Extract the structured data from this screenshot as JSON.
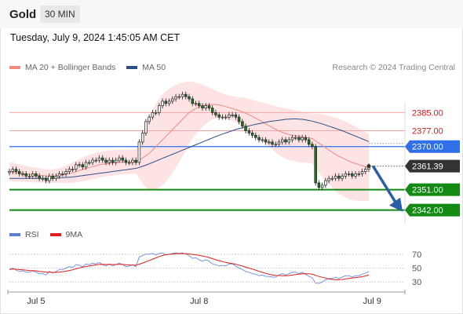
{
  "header": {
    "title": "Gold",
    "timeframe": "30 MIN"
  },
  "datetime": "Tuesday, July 9, 2024 1:45:05 AM CET",
  "legend": {
    "items": [
      {
        "label": "MA 20 + Bollinger Bands",
        "color": "#f28b82"
      },
      {
        "label": "MA 50",
        "color": "#2c4f8a"
      }
    ],
    "credit": "Research © 2024 Trading Central"
  },
  "rsi_legend": {
    "items": [
      {
        "label": "RSI",
        "color": "#5b7fd6"
      },
      {
        "label": "9MA",
        "color": "#e01e1e"
      }
    ]
  },
  "colors": {
    "resistance": "#f4a6a6",
    "resistance_label": "#d02020",
    "pivot": "#2f6fe8",
    "support": "#138a13",
    "current": "#333333",
    "up_candle": "#ffffff",
    "down_candle": "#1a7a1a",
    "band": "#fde0e0",
    "arrow": "#2a5ea8"
  },
  "chart_data": [
    {
      "type": "candlestick",
      "x_ticks": [
        {
          "label": "Jul 5",
          "index": 8
        },
        {
          "label": "Jul 8",
          "index": 57
        },
        {
          "label": "Jul 9",
          "index": 109
        }
      ],
      "ylim": [
        2336,
        2400
      ],
      "levels": [
        {
          "value": 2385.0,
          "label": "2385.00",
          "kind": "resistance"
        },
        {
          "value": 2377.0,
          "label": "2377.00",
          "kind": "resistance"
        },
        {
          "value": 2370.0,
          "label": "2370.00",
          "kind": "pivot"
        },
        {
          "value": 2361.39,
          "label": "2361.39",
          "kind": "current"
        },
        {
          "value": 2351.0,
          "label": "2351.00",
          "kind": "support"
        },
        {
          "value": 2342.0,
          "label": "2342.00",
          "kind": "support"
        }
      ],
      "forecast_target": 2342.0,
      "closes": [
        2359,
        2360,
        2359,
        2358,
        2358,
        2357,
        2357,
        2358,
        2357,
        2356,
        2356,
        2355,
        2357,
        2356,
        2357,
        2358,
        2358,
        2359,
        2360,
        2360,
        2362,
        2362,
        2361,
        2363,
        2363,
        2364,
        2364,
        2365,
        2364,
        2363,
        2364,
        2363,
        2364,
        2365,
        2364,
        2363,
        2363,
        2364,
        2363,
        2372,
        2376,
        2381,
        2383,
        2385,
        2385,
        2388,
        2390,
        2389,
        2390,
        2391,
        2392,
        2392,
        2393,
        2392,
        2391,
        2389,
        2389,
        2388,
        2387,
        2388,
        2387,
        2385,
        2384,
        2383,
        2383,
        2383,
        2384,
        2384,
        2383,
        2381,
        2379,
        2377,
        2376,
        2375,
        2374,
        2373,
        2373,
        2372,
        2372,
        2371,
        2371,
        2372,
        2373,
        2372,
        2373,
        2374,
        2374,
        2373,
        2374,
        2373,
        2371,
        2370,
        2354,
        2352,
        2353,
        2355,
        2356,
        2356,
        2357,
        2356,
        2357,
        2358,
        2358,
        2357,
        2358,
        2358,
        2359,
        2360,
        2361.39
      ],
      "ma20": [
        2359,
        2358.8,
        2358.5,
        2358.3,
        2358.2,
        2358,
        2357.8,
        2357.6,
        2357.5,
        2357.3,
        2357.2,
        2357,
        2357,
        2357,
        2357.1,
        2357.3,
        2357.5,
        2357.8,
        2358.1,
        2358.5,
        2359,
        2359.5,
        2360,
        2360.4,
        2360.8,
        2361.2,
        2361.6,
        2362,
        2362.2,
        2362.4,
        2362.6,
        2362.8,
        2363,
        2363.1,
        2363.2,
        2363.3,
        2363.3,
        2363.4,
        2363.4,
        2364,
        2365,
        2366,
        2367,
        2368.5,
        2370,
        2371.5,
        2373,
        2374.5,
        2376,
        2377.5,
        2379,
        2380.5,
        2382,
        2383.5,
        2385,
        2386,
        2386.8,
        2387.5,
        2388,
        2388.3,
        2388.5,
        2388.6,
        2388.5,
        2388.3,
        2388,
        2387.6,
        2387.2,
        2386.8,
        2386.3,
        2385.8,
        2385.3,
        2384.7,
        2384,
        2383.3,
        2382.5,
        2381.7,
        2380.8,
        2380,
        2379.2,
        2378.4,
        2377.6,
        2376.9,
        2376.3,
        2375.8,
        2375.3,
        2375,
        2374.7,
        2374.4,
        2374.2,
        2374,
        2373.8,
        2373.5,
        2372.5,
        2371.5,
        2370.5,
        2369.5,
        2368.5,
        2367.5,
        2366.5,
        2365.7,
        2365,
        2364.3,
        2363.6,
        2363,
        2362.5,
        2362,
        2361.6,
        2361.2,
        2360.8
      ],
      "ma50": [
        2356,
        2356,
        2356,
        2356,
        2356,
        2356,
        2356,
        2356,
        2356,
        2356,
        2356,
        2356,
        2356,
        2356,
        2356.1,
        2356.2,
        2356.3,
        2356.4,
        2356.5,
        2356.6,
        2356.8,
        2357,
        2357.2,
        2357.4,
        2357.6,
        2357.8,
        2358,
        2358.2,
        2358.4,
        2358.6,
        2358.8,
        2359,
        2359.2,
        2359.4,
        2359.6,
        2359.8,
        2360,
        2360.2,
        2360.4,
        2360.8,
        2361.3,
        2361.8,
        2362.4,
        2363,
        2363.6,
        2364.2,
        2364.8,
        2365.4,
        2366,
        2366.6,
        2367.2,
        2367.8,
        2368.4,
        2369,
        2369.6,
        2370.2,
        2370.8,
        2371.4,
        2372,
        2372.6,
        2373.2,
        2373.8,
        2374.4,
        2375,
        2375.5,
        2376,
        2376.5,
        2377,
        2377.5,
        2377.9,
        2378.3,
        2378.7,
        2379.1,
        2379.5,
        2379.8,
        2380.1,
        2380.4,
        2380.7,
        2381,
        2381.2,
        2381.4,
        2381.6,
        2381.8,
        2382,
        2382.1,
        2382.2,
        2382.2,
        2382.1,
        2382,
        2381.8,
        2381.5,
        2381.2,
        2380.8,
        2380.4,
        2380,
        2379.5,
        2379,
        2378.5,
        2378,
        2377.5,
        2377,
        2376.4,
        2375.8,
        2375.2,
        2374.6,
        2374,
        2373.4,
        2372.8,
        2372.2
      ],
      "bb_upper": [
        2363,
        2363,
        2362.5,
        2362,
        2361.8,
        2361.5,
        2361.2,
        2361,
        2360.8,
        2360.5,
        2360.3,
        2360,
        2360,
        2360,
        2360.2,
        2360.5,
        2361,
        2361.6,
        2362.3,
        2363,
        2363.8,
        2364.5,
        2365.2,
        2365.8,
        2366.3,
        2366.8,
        2367.2,
        2367.6,
        2367.8,
        2368,
        2368.2,
        2368.4,
        2368.5,
        2368.6,
        2368.7,
        2368.7,
        2368.7,
        2368.8,
        2368.8,
        2372,
        2376,
        2380,
        2383,
        2386,
        2389,
        2391,
        2393,
        2394.5,
        2395.5,
        2396.5,
        2397.2,
        2397.8,
        2398.2,
        2398.5,
        2398.6,
        2398.5,
        2398.2,
        2397.8,
        2397.3,
        2396.7,
        2396,
        2395.3,
        2394.6,
        2394,
        2393.5,
        2393,
        2392.6,
        2392.3,
        2392,
        2391.8,
        2391.6,
        2391.3,
        2391,
        2390.6,
        2390.2,
        2389.8,
        2389.4,
        2389,
        2388.6,
        2388.2,
        2387.8,
        2387.5,
        2387.2,
        2386.9,
        2386.6,
        2386.3,
        2386,
        2385.7,
        2385.4,
        2385.1,
        2384.8,
        2384.5,
        2384.5,
        2384.5,
        2384.3,
        2384,
        2383.6,
        2383.2,
        2382.7,
        2382.2,
        2381.6,
        2381,
        2380.3,
        2379.6,
        2378.8,
        2378,
        2377.2,
        2376.4,
        2375.6
      ],
      "bb_lower": [
        2355,
        2354.6,
        2354.5,
        2354.6,
        2354.6,
        2354.5,
        2354.4,
        2354.2,
        2354.2,
        2354.1,
        2354.1,
        2354,
        2354,
        2354,
        2354,
        2354.1,
        2354,
        2354,
        2353.9,
        2354,
        2354.2,
        2354.5,
        2354.8,
        2355,
        2355.3,
        2355.6,
        2356,
        2356.4,
        2356.6,
        2356.8,
        2357,
        2357.2,
        2357.5,
        2357.6,
        2357.7,
        2357.9,
        2357.9,
        2358,
        2358,
        2356,
        2354,
        2352,
        2351,
        2351,
        2351,
        2352,
        2353,
        2354.5,
        2356.5,
        2358.5,
        2360.8,
        2363.2,
        2365.8,
        2368.5,
        2371.4,
        2373.5,
        2375.4,
        2377.2,
        2378.7,
        2379.9,
        2381,
        2381.9,
        2382.4,
        2382.6,
        2382.5,
        2382.2,
        2381.8,
        2381.3,
        2380.6,
        2379.8,
        2379,
        2378.1,
        2377,
        2376,
        2374.8,
        2373.6,
        2372.2,
        2371,
        2369.8,
        2368.6,
        2367.4,
        2366.3,
        2365.4,
        2364.7,
        2364,
        2363.7,
        2363.4,
        2363.1,
        2363,
        2362.9,
        2362.8,
        2362.5,
        2360.5,
        2358.5,
        2356.7,
        2355,
        2353.4,
        2351.8,
        2350.3,
        2349.2,
        2348.4,
        2347.6,
        2346.9,
        2346.4,
        2346.2,
        2346,
        2346,
        2346,
        2346
      ],
      "rsi_ylim": [
        20,
        80
      ],
      "rsi_ticks": [
        30,
        50,
        70
      ],
      "rsi": [
        48,
        50,
        47,
        45,
        46,
        44,
        44,
        46,
        44,
        42,
        42,
        40,
        45,
        43,
        45,
        48,
        48,
        50,
        52,
        51,
        55,
        54,
        52,
        56,
        55,
        57,
        56,
        58,
        55,
        53,
        56,
        53,
        55,
        57,
        55,
        52,
        53,
        55,
        52,
        66,
        68,
        70,
        70,
        71,
        69,
        71,
        72,
        69,
        70,
        71,
        72,
        71,
        72,
        70,
        68,
        64,
        65,
        62,
        60,
        62,
        60,
        56,
        55,
        53,
        54,
        53,
        56,
        56,
        53,
        50,
        48,
        45,
        44,
        42,
        41,
        39,
        40,
        38,
        38,
        37,
        37,
        40,
        42,
        40,
        42,
        44,
        44,
        42,
        44,
        41,
        38,
        36,
        28,
        28,
        30,
        33,
        35,
        35,
        37,
        35,
        37,
        39,
        39,
        37,
        39,
        39,
        41,
        43,
        45
      ],
      "rsi_ma9": [
        48,
        48.5,
        48.3,
        47.8,
        47.5,
        47,
        46.5,
        46.3,
        46,
        45.3,
        44.8,
        44,
        44.2,
        43.8,
        43.8,
        44.2,
        44.8,
        45.5,
        46.5,
        47.5,
        49,
        50.2,
        51.2,
        52.3,
        53.2,
        54,
        54.6,
        55.2,
        55.4,
        55.2,
        55.3,
        55.2,
        55.1,
        55.3,
        55.3,
        54.8,
        54.5,
        54.4,
        54.1,
        55.6,
        57.2,
        59.1,
        61,
        62.9,
        64.7,
        66.6,
        68.2,
        69.3,
        69.8,
        70.2,
        70.6,
        70.7,
        70.9,
        70.8,
        70.4,
        69.7,
        69.2,
        68.4,
        67.4,
        66.4,
        65.2,
        63.6,
        62,
        60.6,
        59.4,
        58.2,
        57.3,
        56.5,
        55.4,
        54.2,
        52.9,
        51.3,
        49.9,
        48.5,
        47,
        45.3,
        43.9,
        42.4,
        41.1,
        40,
        39.4,
        39.2,
        39,
        38.8,
        39.2,
        39.9,
        40.7,
        41.2,
        41.9,
        42,
        41.7,
        41,
        39.5,
        37.9,
        36.7,
        35.6,
        34.4,
        33.6,
        33.4,
        33.1,
        33.6,
        34.3,
        35.1,
        35.7,
        36.3,
        36.9,
        37.6,
        38.7,
        39.9
      ]
    }
  ]
}
